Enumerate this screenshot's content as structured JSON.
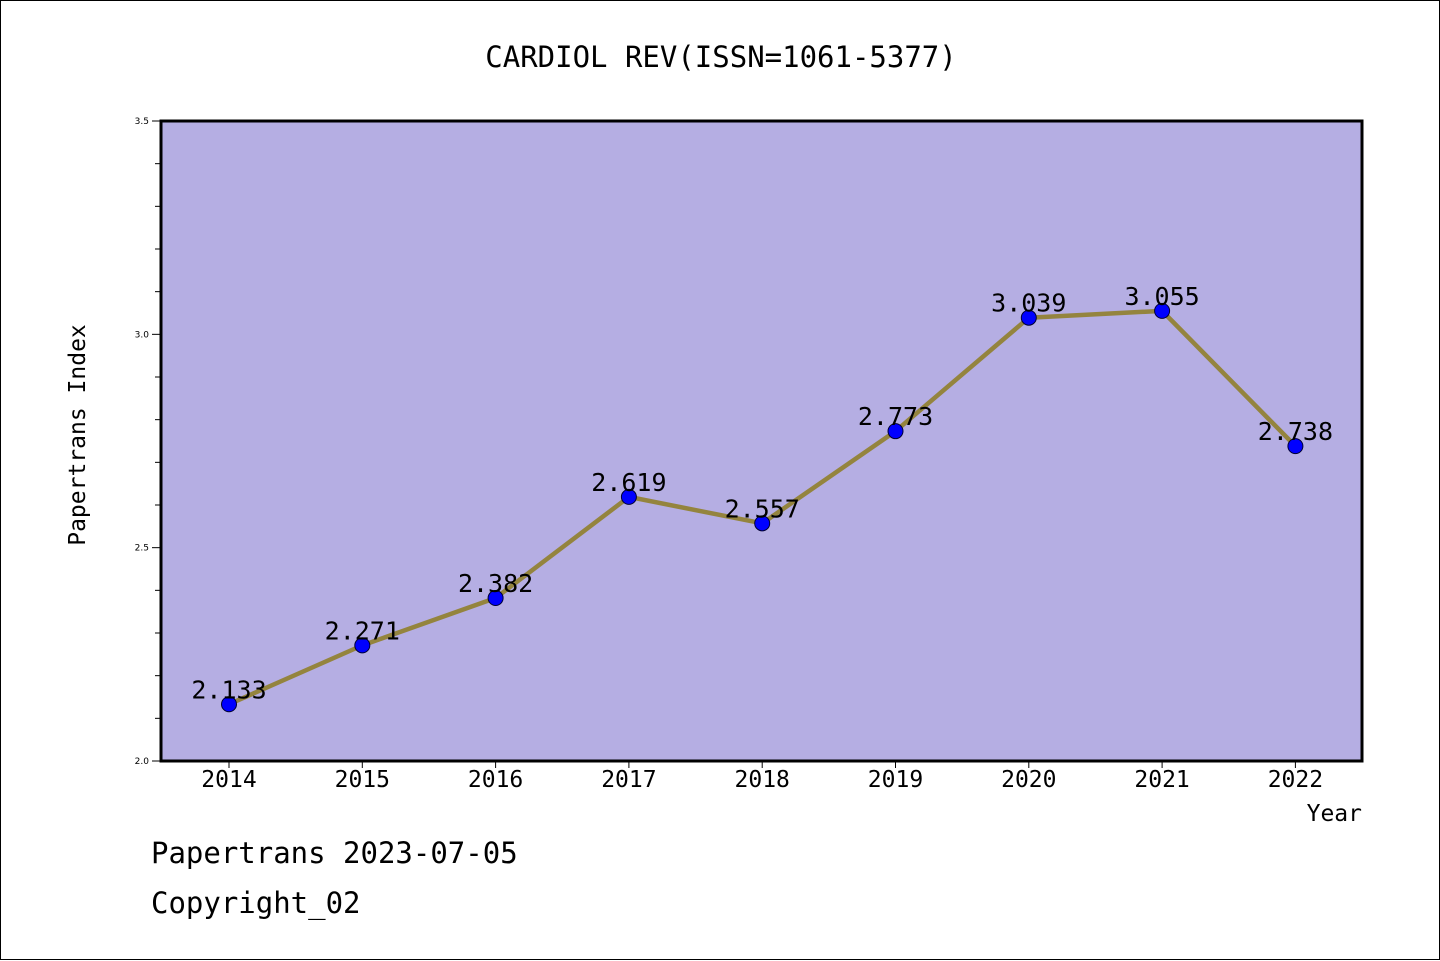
{
  "colors": {
    "plot_background": "#b5aee3",
    "line": "#94843e",
    "marker": "#0000ff",
    "frame": "#000000"
  },
  "chart_data": {
    "type": "line",
    "title": "CARDIOL REV(ISSN=1061-5377)",
    "xlabel": "Year",
    "ylabel": "Papertrans Index",
    "categories": [
      "2014",
      "2015",
      "2016",
      "2017",
      "2018",
      "2019",
      "2020",
      "2021",
      "2022"
    ],
    "series": [
      {
        "values": [
          2.133,
          2.271,
          2.382,
          2.619,
          2.557,
          2.773,
          3.039,
          3.055,
          2.738
        ]
      }
    ],
    "data_labels": [
      "2.133",
      "2.271",
      "2.382",
      "2.619",
      "2.557",
      "2.773",
      "3.039",
      "3.055",
      "2.738"
    ],
    "ylim": [
      2.0,
      3.5
    ],
    "y_major_ticks": [
      "2.0",
      "2.5",
      "3.0",
      "3.5"
    ],
    "y_minor_step": 0.1,
    "grid": false,
    "legend": "none"
  },
  "footer": {
    "stamp": "Papertrans 2023-07-05",
    "copyright": "Copyright_02"
  }
}
